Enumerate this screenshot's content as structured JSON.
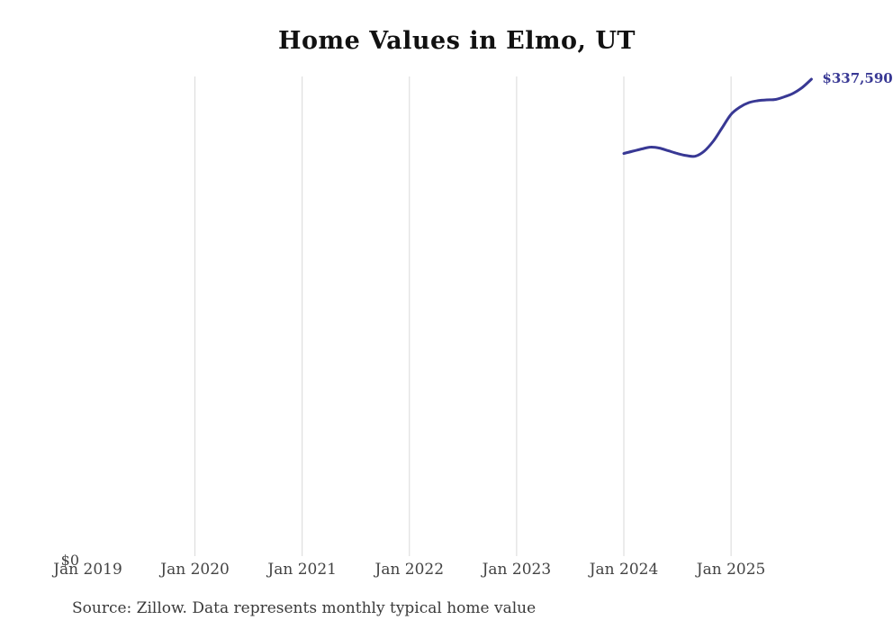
{
  "page": {
    "background_color": "#ffffff"
  },
  "header": {
    "title": "Home Values in Elmo, UT"
  },
  "chart_data": {
    "type": "line",
    "title": "Home Values in Elmo, UT",
    "series": [
      {
        "name": "Typical home value",
        "x": [
          "Jan 2024",
          "Feb 2024",
          "Mar 2024",
          "Apr 2024",
          "May 2024",
          "Jun 2024",
          "Jul 2024",
          "Aug 2024",
          "Sep 2024",
          "Oct 2024",
          "Nov 2024",
          "Dec 2024",
          "Jan 2025",
          "Feb 2025",
          "Mar 2025",
          "Apr 2025",
          "May 2025",
          "Jun 2025",
          "Jul 2025",
          "Aug 2025",
          "Sep 2025",
          "Oct 2025"
        ],
        "values": [
          285200,
          286800,
          288400,
          289700,
          289000,
          287100,
          285200,
          283700,
          283300,
          286800,
          293800,
          303300,
          312800,
          317900,
          321100,
          322400,
          323000,
          323300,
          325200,
          327800,
          331900,
          337590
        ]
      }
    ],
    "end_point_label": "$337,590",
    "x_ticks": [
      "Jan 2019",
      "Jan 2020",
      "Jan 2021",
      "Jan 2022",
      "Jan 2023",
      "Jan 2024",
      "Jan 2025"
    ],
    "gridline_ticks": [
      "Jan 2020",
      "Jan 2021",
      "Jan 2022",
      "Jan 2023",
      "Jan 2024",
      "Jan 2025"
    ],
    "y_ticks": [
      "$0"
    ],
    "ylim": [
      0,
      337590
    ],
    "grid": "vertical-only",
    "legend": "none",
    "line_color": "#383894",
    "end_label_color": "#383894",
    "gridline_color": "#d9d9d9",
    "tick_label_color": "#434343"
  },
  "footer": {
    "source_note": "Source: Zillow. Data represents monthly typical home value"
  }
}
